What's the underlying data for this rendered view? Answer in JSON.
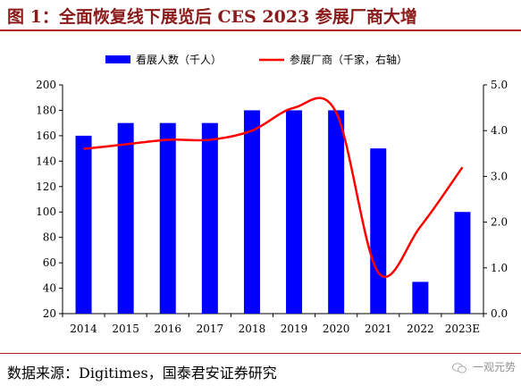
{
  "header": {
    "title": "图 1：全面恢复线下展览后 CES 2023 参展厂商大增"
  },
  "footer": {
    "source": "数据来源：Digitimes，国泰君安证券研究",
    "watermark": "一观元势"
  },
  "chart_data": {
    "type": "bar",
    "categories": [
      "2014",
      "2015",
      "2016",
      "2017",
      "2018",
      "2019",
      "2020",
      "2021",
      "2022",
      "2023E"
    ],
    "series": [
      {
        "name": "看展人数（千人）",
        "type": "bar",
        "axis": "left",
        "color": "#0000ff",
        "values": [
          160,
          170,
          170,
          170,
          180,
          180,
          180,
          150,
          45,
          100
        ]
      },
      {
        "name": "参展厂商（千家，右轴）",
        "type": "line",
        "axis": "right",
        "color": "#ff0000",
        "values": [
          3.6,
          3.7,
          3.8,
          3.8,
          4.0,
          4.5,
          4.4,
          0.9,
          1.9,
          3.2
        ]
      }
    ],
    "ylim_left": [
      20,
      200
    ],
    "yticks_left": [
      20,
      40,
      60,
      80,
      100,
      120,
      140,
      160,
      180,
      200
    ],
    "ylim_right": [
      0,
      5
    ],
    "yticks_right": [
      "0.0",
      "1.0",
      "2.0",
      "3.0",
      "4.0",
      "5.0"
    ],
    "grid": false,
    "legend_position": "top"
  }
}
